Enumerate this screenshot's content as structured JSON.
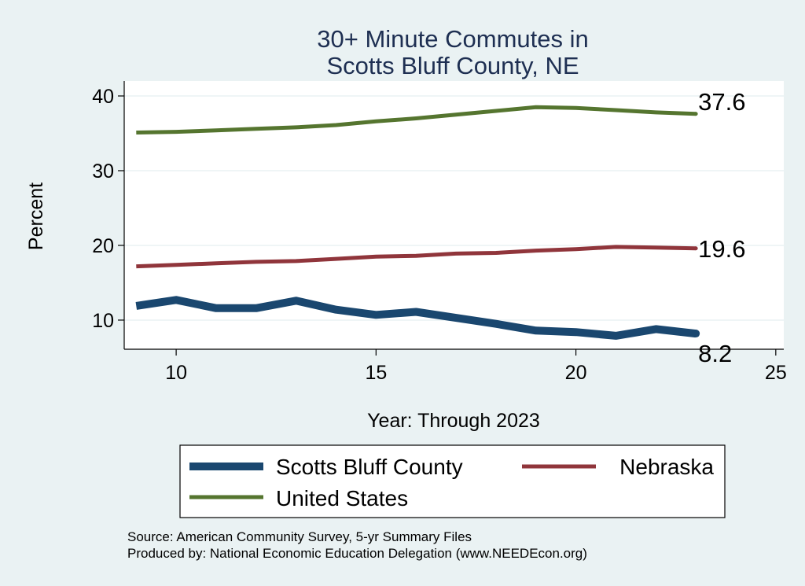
{
  "chart_data": {
    "type": "line",
    "title": [
      "30+ Minute Commutes in",
      "Scotts Bluff County, NE"
    ],
    "xlabel": "Year: Through 2023",
    "ylabel": "Percent",
    "xlim": [
      8.7,
      25.2
    ],
    "ylim": [
      6.1,
      42
    ],
    "xticks": [
      10,
      15,
      20,
      25
    ],
    "yticks": [
      10,
      20,
      30,
      40
    ],
    "grid": true,
    "legend_position": "bottom",
    "series": [
      {
        "name": "Scotts Bluff County",
        "color": "#1a476f",
        "end_label": "8.2",
        "x": [
          9,
          10,
          11,
          12,
          13,
          14,
          15,
          16,
          17,
          18,
          19,
          20,
          21,
          22,
          23
        ],
        "values": [
          11.9,
          12.7,
          11.6,
          11.6,
          12.6,
          11.4,
          10.7,
          11.1,
          10.3,
          9.5,
          8.6,
          8.4,
          7.9,
          8.8,
          8.2
        ]
      },
      {
        "name": "Nebraska",
        "color": "#90353b",
        "end_label": "19.6",
        "x": [
          9,
          10,
          11,
          12,
          13,
          14,
          15,
          16,
          17,
          18,
          19,
          20,
          21,
          22,
          23
        ],
        "values": [
          17.2,
          17.4,
          17.6,
          17.8,
          17.9,
          18.2,
          18.5,
          18.6,
          18.9,
          19.0,
          19.3,
          19.5,
          19.8,
          19.7,
          19.6
        ]
      },
      {
        "name": "United States",
        "color": "#55752f",
        "end_label": "37.6",
        "x": [
          9,
          10,
          11,
          12,
          13,
          14,
          15,
          16,
          17,
          18,
          19,
          20,
          21,
          22,
          23
        ],
        "values": [
          35.1,
          35.2,
          35.4,
          35.6,
          35.8,
          36.1,
          36.6,
          37.0,
          37.5,
          38.0,
          38.5,
          38.4,
          38.1,
          37.8,
          37.6
        ]
      }
    ],
    "footnote": [
      "Source: American Community Survey, 5-yr Summary Files",
      "Produced by: National Economic Education Delegation (www.NEEDEcon.org)"
    ]
  }
}
